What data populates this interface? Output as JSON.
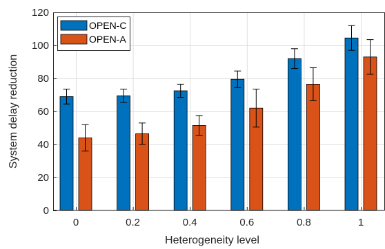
{
  "chart_data": {
    "type": "bar",
    "title": "",
    "xlabel": "Heterogeneity level",
    "ylabel": "System delay reduction",
    "categories": [
      "0",
      "0.2",
      "0.4",
      "0.6",
      "0.8",
      "1"
    ],
    "ylim": [
      0,
      120
    ],
    "yticks": [
      0,
      20,
      40,
      60,
      80,
      100,
      120
    ],
    "grid": true,
    "legend_position": "top-left",
    "series": [
      {
        "name": "OPEN-C",
        "color": "#0072BD",
        "values": [
          69,
          69.5,
          72.5,
          79.5,
          92,
          104.5
        ],
        "errors": [
          4.5,
          4,
          4,
          5,
          6,
          7.5
        ]
      },
      {
        "name": "OPEN-A",
        "color": "#D95319",
        "values": [
          44,
          46.5,
          51.5,
          62,
          76.5,
          93
        ],
        "errors": [
          8,
          6.5,
          6,
          11.5,
          10,
          10.5
        ]
      }
    ]
  }
}
